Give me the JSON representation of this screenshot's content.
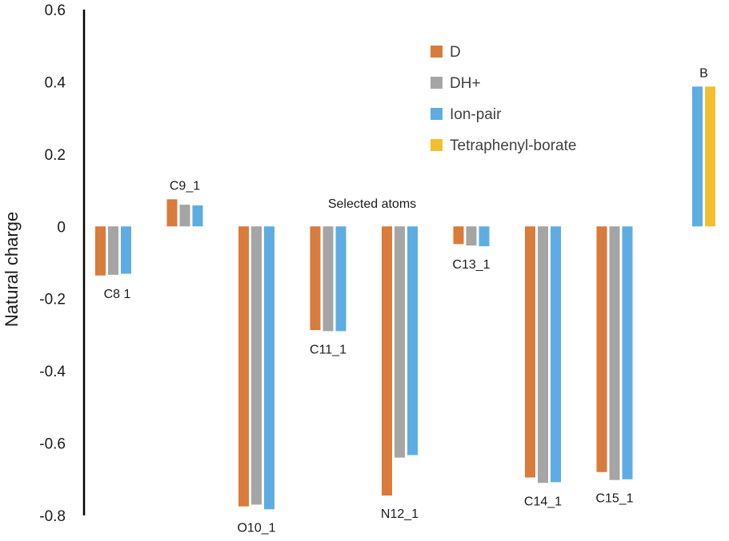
{
  "chart_data": {
    "type": "bar",
    "title": "",
    "xlabel": "Selected atoms",
    "ylabel": "Natural charge",
    "ylim": [
      -0.8,
      0.6
    ],
    "yticks": [
      "0.6",
      "0.4",
      "0.2",
      "0",
      "-0.2",
      "-0.4",
      "-0.6",
      "-0.8"
    ],
    "ytick_values": [
      0.6,
      0.4,
      0.2,
      0,
      -0.2,
      -0.4,
      -0.6,
      -0.8
    ],
    "grid": false,
    "legend_position": "top-right",
    "categories": [
      "C8_1",
      "C9_1",
      "O10_1",
      "C11_1",
      "N12_1",
      "C13_1",
      "C14_1",
      "C15_1",
      "B"
    ],
    "category_labels": [
      "C8  1",
      "C9_1",
      "O10_1",
      "C11_1",
      "N12_1",
      "C13_1",
      "C14_1",
      "C15_1",
      "B"
    ],
    "series": [
      {
        "name": "D",
        "color": "#d97b3a",
        "values": [
          -0.136,
          0.075,
          -0.775,
          -0.287,
          -0.745,
          -0.049,
          -0.695,
          -0.68,
          null
        ]
      },
      {
        "name": "DH+",
        "color": "#a5a5a5",
        "values": [
          -0.134,
          0.06,
          -0.77,
          -0.29,
          -0.64,
          -0.053,
          -0.71,
          -0.702,
          null
        ]
      },
      {
        "name": "Ion-pair",
        "color": "#5dade2",
        "values": [
          -0.131,
          0.058,
          -0.783,
          -0.29,
          -0.633,
          -0.055,
          -0.708,
          -0.7,
          0.387
        ]
      },
      {
        "name": "Tetraphenyl-borate",
        "color": "#f2c02e",
        "values": [
          null,
          null,
          null,
          null,
          null,
          null,
          null,
          null,
          0.387
        ]
      }
    ]
  }
}
